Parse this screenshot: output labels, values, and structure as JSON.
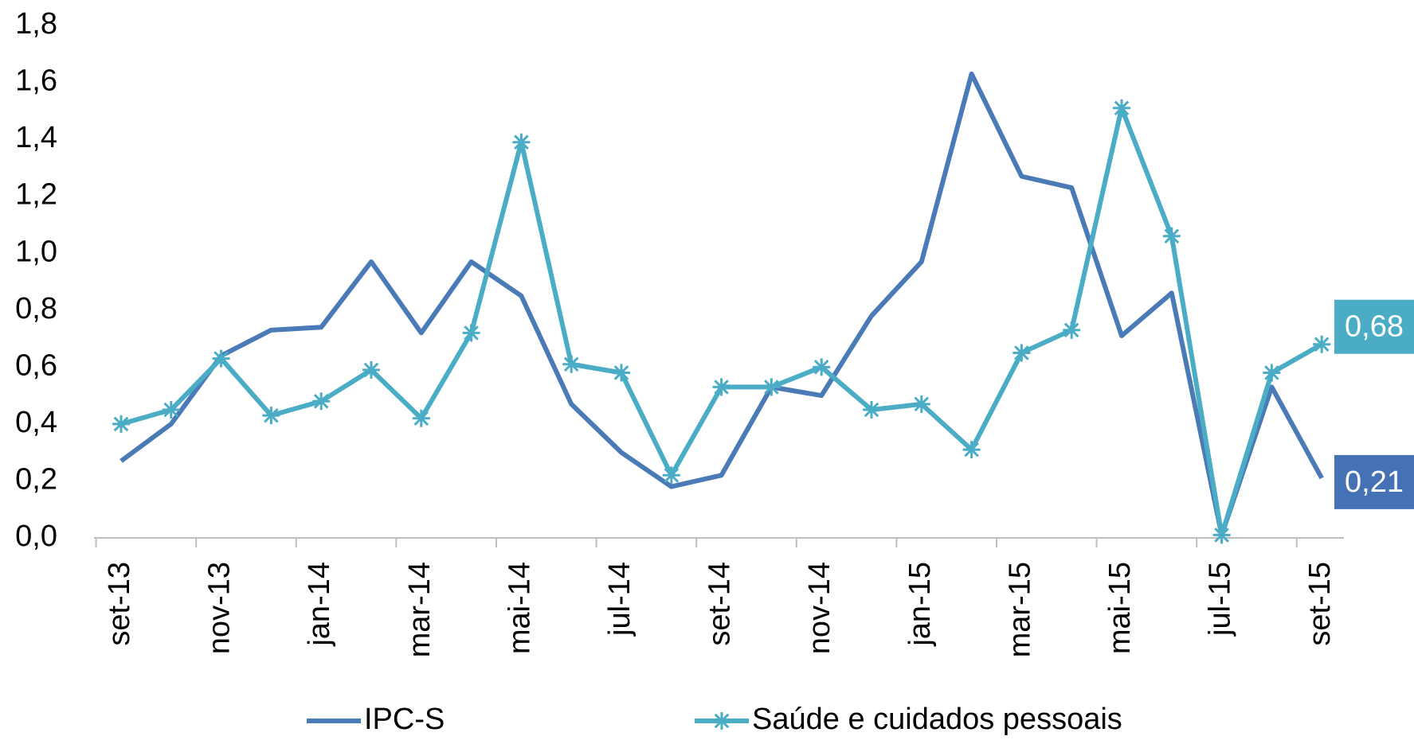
{
  "chart_data": {
    "type": "line",
    "categories": [
      "set-13",
      null,
      "nov-13",
      null,
      "jan-14",
      null,
      "mar-14",
      null,
      "mai-14",
      null,
      "jul-14",
      null,
      "set-14",
      null,
      "nov-14",
      null,
      "jan-15",
      null,
      "mar-15",
      null,
      "mai-15",
      null,
      "jul-15",
      null,
      "set-15"
    ],
    "series": [
      {
        "name": "IPC-S",
        "color": "#4a7bb7",
        "label_color": "#4472b4",
        "values": [
          0.27,
          0.4,
          0.64,
          0.73,
          0.74,
          0.97,
          0.72,
          0.97,
          0.85,
          0.47,
          0.3,
          0.18,
          0.22,
          0.53,
          0.5,
          0.78,
          0.97,
          1.63,
          1.27,
          1.23,
          0.71,
          0.86,
          0.01,
          0.53,
          0.21
        ],
        "value_labels": [
          null,
          null,
          null,
          null,
          null,
          null,
          null,
          null,
          null,
          null,
          null,
          null,
          null,
          null,
          null,
          null,
          null,
          null,
          null,
          null,
          null,
          null,
          null,
          null,
          "0,21"
        ]
      },
      {
        "name": "Saúde e cuidados pessoais",
        "color": "#4bacc6",
        "label_color": "#4bacc6",
        "marker": "star",
        "values": [
          0.4,
          0.45,
          0.63,
          0.43,
          0.48,
          0.59,
          0.42,
          0.72,
          1.39,
          0.61,
          0.58,
          0.22,
          0.53,
          0.53,
          0.6,
          0.45,
          0.47,
          0.31,
          0.65,
          0.73,
          1.51,
          1.06,
          0.01,
          0.58,
          0.68
        ],
        "value_labels": [
          null,
          null,
          null,
          null,
          null,
          null,
          null,
          null,
          null,
          null,
          null,
          null,
          null,
          null,
          null,
          null,
          null,
          null,
          null,
          null,
          null,
          null,
          null,
          null,
          "0,68"
        ]
      }
    ],
    "ylim": [
      0,
      1.8
    ],
    "yticks": [
      {
        "value": 0,
        "label": "0,0"
      },
      {
        "value": 0.2,
        "label": "0,2"
      },
      {
        "value": 0.4,
        "label": "0,4"
      },
      {
        "value": 0.6,
        "label": "0,6"
      },
      {
        "value": 0.8,
        "label": "0,8"
      },
      {
        "value": 1.0,
        "label": "1,0"
      },
      {
        "value": 1.2,
        "label": "1,2"
      },
      {
        "value": 1.4,
        "label": "1,4"
      },
      {
        "value": 1.6,
        "label": "1,6"
      },
      {
        "value": 1.8,
        "label": "1,8"
      }
    ],
    "grid": false,
    "legend": "bottom"
  }
}
